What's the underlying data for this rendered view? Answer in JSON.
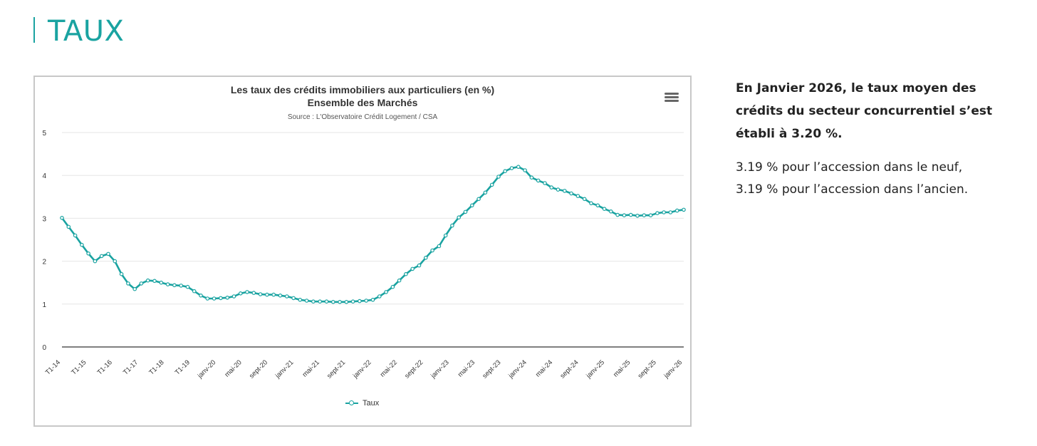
{
  "page": {
    "title": "TAUX"
  },
  "colors": {
    "accent": "#1aa3a1",
    "grid": "#e6e6e6",
    "axis": "#333333",
    "frame": "#c8c8c8"
  },
  "chart": {
    "menu_icon": "hamburger-menu-icon",
    "source": "Source : L'Observatoire Crédit Logement / CSA"
  },
  "chart_data": {
    "type": "line",
    "title": "Les taux des crédits immobiliers aux particuliers (en %)",
    "subtitle": "Ensemble des Marchés",
    "xlabel": "",
    "ylabel": "",
    "ylim": [
      0,
      5
    ],
    "yticks": [
      0,
      1,
      2,
      3,
      4,
      5
    ],
    "grid": true,
    "legend_position": "bottom-center",
    "x_tick_labels": [
      "T1-14",
      "T1-15",
      "T1-16",
      "T1-17",
      "T1-18",
      "T1-19",
      "janv-20",
      "mai-20",
      "sept-20",
      "janv-21",
      "mai-21",
      "sept-21",
      "janv-22",
      "mai-22",
      "sept-22",
      "janv-23",
      "mai-23",
      "sept-23",
      "janv-24",
      "mai-24",
      "sept-24",
      "janv-25",
      "mai-25",
      "sept-25",
      "janv-26"
    ],
    "series": [
      {
        "name": "Taux",
        "values": [
          3.01,
          2.8,
          2.6,
          2.38,
          2.18,
          2.0,
          2.12,
          2.17,
          2.0,
          1.7,
          1.48,
          1.35,
          1.48,
          1.55,
          1.54,
          1.5,
          1.46,
          1.44,
          1.43,
          1.4,
          1.3,
          1.2,
          1.13,
          1.13,
          1.14,
          1.15,
          1.18,
          1.25,
          1.28,
          1.26,
          1.23,
          1.22,
          1.22,
          1.2,
          1.18,
          1.14,
          1.1,
          1.08,
          1.06,
          1.06,
          1.06,
          1.05,
          1.05,
          1.05,
          1.06,
          1.07,
          1.08,
          1.1,
          1.18,
          1.28,
          1.4,
          1.55,
          1.7,
          1.82,
          1.9,
          2.08,
          2.25,
          2.35,
          2.6,
          2.83,
          3.02,
          3.15,
          3.3,
          3.45,
          3.6,
          3.78,
          3.97,
          4.1,
          4.17,
          4.2,
          4.12,
          3.95,
          3.88,
          3.82,
          3.72,
          3.67,
          3.64,
          3.58,
          3.52,
          3.45,
          3.35,
          3.3,
          3.22,
          3.16,
          3.08,
          3.07,
          3.08,
          3.06,
          3.07,
          3.07,
          3.12,
          3.14,
          3.14,
          3.18,
          3.2
        ]
      }
    ]
  },
  "side": {
    "headline": "En Janvier 2026, le taux moyen des crédits du secteur concurrentiel s’est établi à 3.20 %.",
    "line1": "3.19 % pour l’accession dans le neuf,",
    "line2": "3.19 % pour l’accession dans l’ancien."
  }
}
